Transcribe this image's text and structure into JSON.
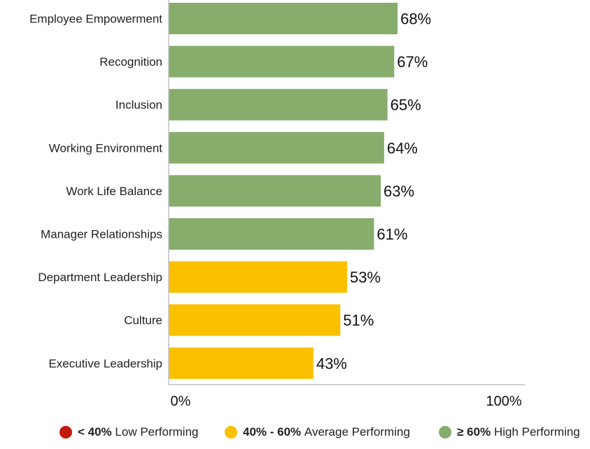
{
  "chart_data": {
    "type": "bar",
    "orientation": "horizontal",
    "categories": [
      "Employee Empowerment",
      "Recognition",
      "Inclusion",
      "Working Environment",
      "Work Life Balance",
      "Manager Relationships",
      "Department Leadership",
      "Culture",
      "Executive Leadership"
    ],
    "values": [
      68,
      67,
      65,
      64,
      63,
      61,
      53,
      51,
      43
    ],
    "value_labels": [
      "68%",
      "67%",
      "65%",
      "64%",
      "63%",
      "61%",
      "53%",
      "51%",
      "43%"
    ],
    "xlim": [
      0,
      100
    ],
    "x_ticks": [
      "0%",
      "100%"
    ],
    "grid": false,
    "colors": {
      "high": "#86ad6c",
      "average": "#fbc000",
      "low": "#c21a0b"
    }
  },
  "legend": {
    "items": [
      {
        "color": "#c21a0b",
        "range": "< 40%",
        "label": "Low Performing"
      },
      {
        "color": "#fbc000",
        "range": "40% - 60%",
        "label": "Average Performing"
      },
      {
        "color": "#86ad6c",
        "range": "≥ 60%",
        "label": "High Performing"
      }
    ]
  }
}
